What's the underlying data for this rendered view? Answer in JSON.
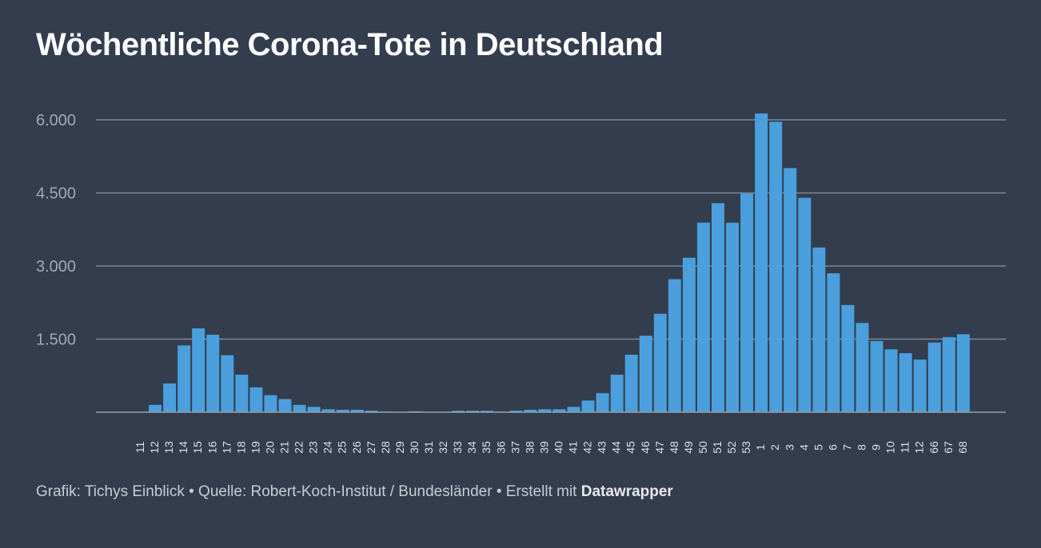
{
  "title": "Wöchentliche Corona-Tote in Deutschland",
  "footer": {
    "text": "Grafik: Tichys Einblick • Quelle: Robert-Koch-Institut / Bundesländer • Erstellt mit",
    "brand": "Datawrapper"
  },
  "colors": {
    "background": "#333d4e",
    "bar": "#4a9fdc",
    "grid": "#7f8793"
  },
  "chart_data": {
    "type": "bar",
    "title": "Wöchentliche Corona-Tote in Deutschland",
    "xlabel": "",
    "ylabel": "",
    "ylim": [
      0,
      6250
    ],
    "yticks": [
      1500,
      3000,
      4500,
      6000
    ],
    "ytick_labels": [
      "1.500",
      "3.000",
      "4.500",
      "6.000"
    ],
    "grid": true,
    "categories": [
      "11",
      "12",
      "13",
      "14",
      "15",
      "16",
      "17",
      "18",
      "19",
      "20",
      "21",
      "22",
      "23",
      "24",
      "25",
      "26",
      "27",
      "28",
      "29",
      "30",
      "31",
      "32",
      "33",
      "34",
      "35",
      "36",
      "37",
      "38",
      "39",
      "40",
      "41",
      "42",
      "43",
      "44",
      "45",
      "46",
      "47",
      "48",
      "49",
      "50",
      "51",
      "52",
      "53",
      "1",
      "2",
      "3",
      "4",
      "5",
      "6",
      "7",
      "8",
      "9",
      "10",
      "11",
      "12",
      "66",
      "67",
      "68"
    ],
    "values": [
      5,
      150,
      590,
      1370,
      1720,
      1590,
      1170,
      770,
      510,
      350,
      270,
      150,
      110,
      60,
      50,
      50,
      30,
      10,
      5,
      20,
      5,
      5,
      30,
      30,
      30,
      10,
      30,
      50,
      60,
      60,
      110,
      240,
      390,
      770,
      1180,
      1570,
      2020,
      2730,
      3170,
      3890,
      4290,
      3890,
      4490,
      6130,
      5960,
      5010,
      4400,
      3380,
      2850,
      2200,
      1830,
      1460,
      1290,
      1210,
      1080,
      1430,
      1540,
      1600
    ]
  }
}
